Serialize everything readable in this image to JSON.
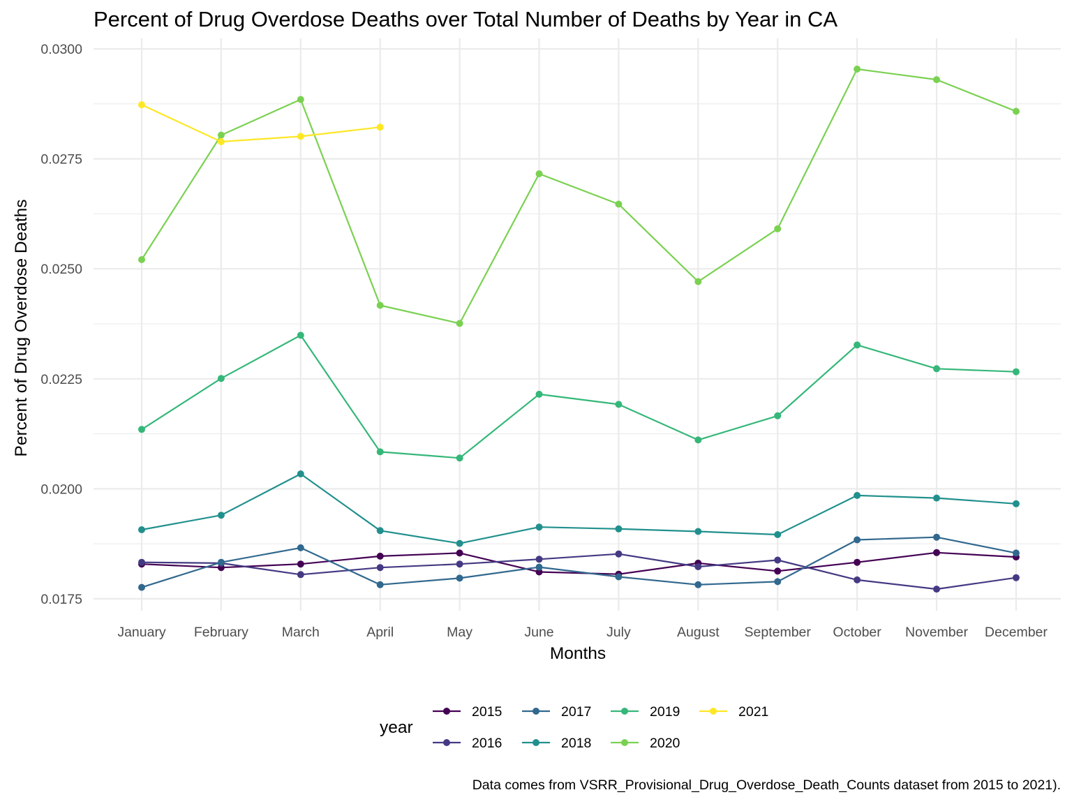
{
  "chart_data": {
    "type": "line",
    "title": "Percent of Drug Overdose Deaths over Total Number of Deaths by Year in CA",
    "xlabel": "Months",
    "ylabel": "Percent of Drug Overdose Deaths",
    "caption": "Data comes from VSRR_Provisional_Drug_Overdose_Death_Counts dataset from 2015 to 2021).",
    "legend_title": "year",
    "legend_position": "bottom",
    "grid": true,
    "ylim": [
      0.01725,
      0.03
    ],
    "yticks": [
      0.0175,
      0.02,
      0.0225,
      0.025,
      0.0275,
      0.03
    ],
    "ytick_labels": [
      "0.0175",
      "0.0200",
      "0.0225",
      "0.0250",
      "0.0275",
      "0.0300"
    ],
    "categories": [
      "January",
      "February",
      "March",
      "April",
      "May",
      "June",
      "July",
      "August",
      "September",
      "October",
      "November",
      "December"
    ],
    "series": [
      {
        "name": "2015",
        "color": "#440154",
        "values": [
          0.01829,
          0.01821,
          0.01829,
          0.01847,
          0.01854,
          0.01811,
          0.01806,
          0.01831,
          0.01813,
          0.01833,
          0.01855,
          0.01845
        ]
      },
      {
        "name": "2016",
        "color": "#443A83",
        "values": [
          0.01833,
          0.01831,
          0.01805,
          0.01821,
          0.01829,
          0.0184,
          0.01852,
          0.01823,
          0.01838,
          0.01793,
          0.01772,
          0.01798
        ]
      },
      {
        "name": "2017",
        "color": "#31688E",
        "values": [
          0.01776,
          0.01833,
          0.01866,
          0.01782,
          0.01797,
          0.01822,
          0.018,
          0.01782,
          0.01789,
          0.01884,
          0.0189,
          0.01854
        ]
      },
      {
        "name": "2018",
        "color": "#21908D",
        "values": [
          0.01907,
          0.0194,
          0.02034,
          0.01905,
          0.01876,
          0.01913,
          0.01909,
          0.01903,
          0.01896,
          0.01985,
          0.01979,
          0.01966
        ]
      },
      {
        "name": "2019",
        "color": "#35B779",
        "values": [
          0.02135,
          0.02251,
          0.02349,
          0.02084,
          0.0207,
          0.02215,
          0.02192,
          0.02111,
          0.02166,
          0.02327,
          0.02273,
          0.02266
        ]
      },
      {
        "name": "2020",
        "color": "#7AD151",
        "values": [
          0.02521,
          0.02804,
          0.02885,
          0.02417,
          0.02376,
          0.02716,
          0.02647,
          0.02471,
          0.02591,
          0.02954,
          0.0293,
          0.02858
        ]
      },
      {
        "name": "2021",
        "color": "#FDE725",
        "values": [
          0.02873,
          0.02789,
          0.02801,
          0.02822,
          null,
          null,
          null,
          null,
          null,
          null,
          null,
          null
        ]
      }
    ]
  }
}
